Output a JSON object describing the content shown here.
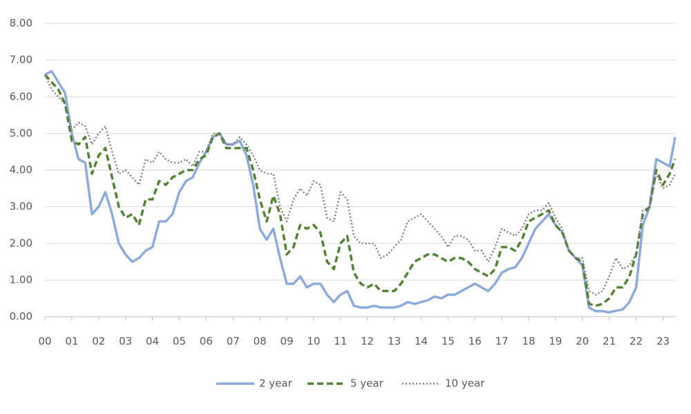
{
  "chart_data": {
    "type": "line",
    "x": [
      0,
      0.25,
      0.5,
      0.75,
      1,
      1.25,
      1.5,
      1.75,
      2,
      2.25,
      2.5,
      2.75,
      3,
      3.25,
      3.5,
      3.75,
      4,
      4.25,
      4.5,
      4.75,
      5,
      5.25,
      5.5,
      5.75,
      6,
      6.25,
      6.5,
      6.75,
      7,
      7.25,
      7.5,
      7.75,
      8,
      8.25,
      8.5,
      8.75,
      9,
      9.25,
      9.5,
      9.75,
      10,
      10.25,
      10.5,
      10.75,
      11,
      11.25,
      11.5,
      11.75,
      12,
      12.25,
      12.5,
      12.75,
      13,
      13.25,
      13.5,
      13.75,
      14,
      14.25,
      14.5,
      14.75,
      15,
      15.25,
      15.5,
      15.75,
      16,
      16.25,
      16.5,
      16.75,
      17,
      17.25,
      17.5,
      17.75,
      18,
      18.25,
      18.5,
      18.75,
      19,
      19.25,
      19.5,
      19.75,
      20,
      20.25,
      20.5,
      20.75,
      21,
      21.25,
      21.5,
      21.75,
      22,
      22.25,
      22.5,
      22.75,
      23,
      23.25,
      23.45
    ],
    "series": [
      {
        "name": "2 year",
        "color": "#8eaadb",
        "style": "solid",
        "values": [
          6.6,
          6.7,
          6.4,
          6.1,
          5.0,
          4.3,
          4.2,
          2.8,
          3.0,
          3.4,
          2.8,
          2.0,
          1.7,
          1.5,
          1.6,
          1.8,
          1.9,
          2.6,
          2.6,
          2.8,
          3.4,
          3.7,
          3.8,
          4.2,
          4.5,
          4.9,
          5.0,
          4.7,
          4.7,
          4.8,
          4.4,
          3.6,
          2.4,
          2.1,
          2.4,
          1.6,
          0.9,
          0.9,
          1.1,
          0.8,
          0.9,
          0.9,
          0.6,
          0.4,
          0.6,
          0.7,
          0.3,
          0.25,
          0.25,
          0.3,
          0.25,
          0.25,
          0.25,
          0.3,
          0.4,
          0.35,
          0.4,
          0.45,
          0.55,
          0.5,
          0.6,
          0.6,
          0.7,
          0.8,
          0.9,
          0.8,
          0.7,
          0.9,
          1.2,
          1.3,
          1.35,
          1.6,
          2.0,
          2.4,
          2.6,
          2.8,
          2.5,
          2.3,
          1.8,
          1.6,
          1.4,
          0.25,
          0.15,
          0.15,
          0.12,
          0.16,
          0.2,
          0.4,
          0.8,
          2.5,
          3.0,
          4.3,
          4.2,
          4.1,
          4.9
        ]
      },
      {
        "name": "5 year",
        "color": "#548235",
        "style": "dashed",
        "values": [
          6.6,
          6.4,
          6.2,
          5.8,
          4.8,
          4.7,
          4.9,
          3.9,
          4.4,
          4.6,
          3.8,
          3.0,
          2.7,
          2.8,
          2.5,
          3.2,
          3.2,
          3.7,
          3.6,
          3.8,
          3.9,
          4.0,
          4.0,
          4.3,
          4.4,
          4.9,
          5.0,
          4.6,
          4.6,
          4.6,
          4.6,
          4.0,
          3.2,
          2.6,
          3.3,
          2.8,
          1.7,
          1.9,
          2.5,
          2.4,
          2.5,
          2.3,
          1.5,
          1.3,
          2.0,
          2.2,
          1.2,
          0.9,
          0.8,
          0.9,
          0.7,
          0.7,
          0.7,
          0.9,
          1.2,
          1.5,
          1.6,
          1.7,
          1.7,
          1.6,
          1.5,
          1.6,
          1.6,
          1.5,
          1.3,
          1.2,
          1.1,
          1.3,
          1.9,
          1.9,
          1.8,
          2.1,
          2.6,
          2.7,
          2.8,
          2.9,
          2.5,
          2.3,
          1.8,
          1.6,
          1.5,
          0.35,
          0.3,
          0.35,
          0.5,
          0.8,
          0.8,
          1.1,
          1.7,
          2.8,
          3.0,
          4.0,
          3.6,
          3.9,
          4.3
        ]
      },
      {
        "name": "10 year",
        "color": "#7f7f7f",
        "style": "dotted",
        "values": [
          6.6,
          6.2,
          6.0,
          5.8,
          5.1,
          5.3,
          5.2,
          4.7,
          5.0,
          5.2,
          4.5,
          3.9,
          4.0,
          3.8,
          3.6,
          4.3,
          4.2,
          4.5,
          4.3,
          4.2,
          4.2,
          4.3,
          4.1,
          4.5,
          4.5,
          5.0,
          5.0,
          4.7,
          4.7,
          4.9,
          4.7,
          4.4,
          4.0,
          3.9,
          3.9,
          3.0,
          2.6,
          3.2,
          3.5,
          3.3,
          3.7,
          3.6,
          2.7,
          2.6,
          3.4,
          3.2,
          2.2,
          2.0,
          2.0,
          2.0,
          1.6,
          1.7,
          1.9,
          2.1,
          2.6,
          2.7,
          2.8,
          2.6,
          2.4,
          2.2,
          1.9,
          2.2,
          2.2,
          2.1,
          1.8,
          1.8,
          1.5,
          1.9,
          2.4,
          2.3,
          2.2,
          2.4,
          2.8,
          2.9,
          2.9,
          3.1,
          2.7,
          2.4,
          1.8,
          1.6,
          1.6,
          0.7,
          0.6,
          0.7,
          1.1,
          1.6,
          1.3,
          1.4,
          1.7,
          2.9,
          3.0,
          3.9,
          3.5,
          3.6,
          3.9
        ]
      }
    ],
    "xlim": [
      0,
      23.45
    ],
    "xticks": [
      {
        "value": 0,
        "label": "00"
      },
      {
        "value": 1,
        "label": "01"
      },
      {
        "value": 2,
        "label": "02"
      },
      {
        "value": 3,
        "label": "03"
      },
      {
        "value": 4,
        "label": "04"
      },
      {
        "value": 5,
        "label": "05"
      },
      {
        "value": 6,
        "label": "06"
      },
      {
        "value": 7,
        "label": "07"
      },
      {
        "value": 8,
        "label": "08"
      },
      {
        "value": 9,
        "label": "09"
      },
      10,
      11,
      12,
      13,
      14,
      15,
      16,
      17,
      18,
      19,
      20,
      21,
      22,
      23
    ],
    "ylim": [
      0,
      8
    ],
    "yticks": [
      {
        "value": 0,
        "label": "0.00"
      },
      {
        "value": 1,
        "label": "1.00"
      },
      {
        "value": 2,
        "label": "2.00"
      },
      {
        "value": 3,
        "label": "3.00"
      },
      {
        "value": 4,
        "label": "4.00"
      },
      {
        "value": 5,
        "label": "5.00"
      },
      {
        "value": 6,
        "label": "6.00"
      },
      {
        "value": 7,
        "label": "7.00"
      },
      {
        "value": 8,
        "label": "8.00"
      }
    ],
    "grid": true,
    "legend": "bottom"
  }
}
